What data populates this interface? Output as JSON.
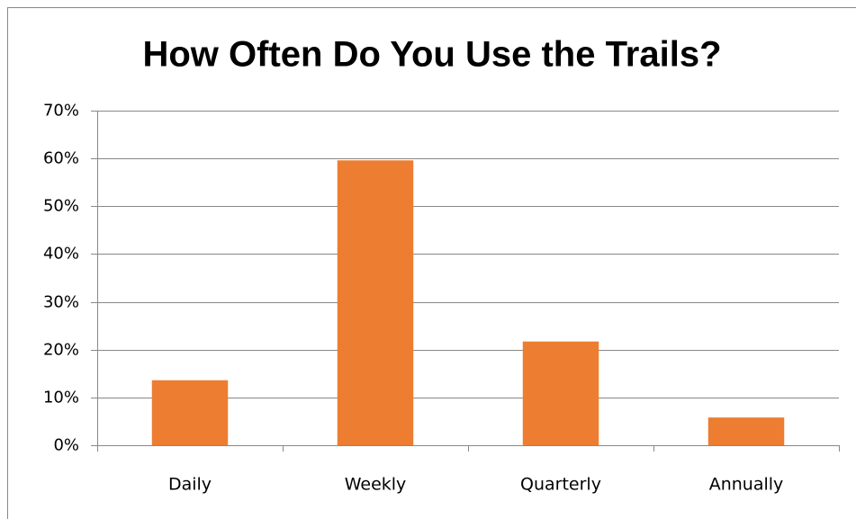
{
  "chart_data": {
    "type": "bar",
    "title": "How Often Do You Use the Trails?",
    "categories": [
      "Daily",
      "Weekly",
      "Quarterly",
      "Annually"
    ],
    "values": [
      13.6,
      59.6,
      21.7,
      5.8
    ],
    "color": "#ed7d31",
    "ylim": [
      0,
      70
    ],
    "yticks": [
      {
        "value": 0,
        "label": "0%"
      },
      {
        "value": 10,
        "label": "10%"
      },
      {
        "value": 20,
        "label": "20%"
      },
      {
        "value": 30,
        "label": "30%"
      },
      {
        "value": 40,
        "label": "40%"
      },
      {
        "value": 50,
        "label": "50%"
      },
      {
        "value": 60,
        "label": "60%"
      },
      {
        "value": 70,
        "label": "70%"
      }
    ],
    "grid": true
  }
}
